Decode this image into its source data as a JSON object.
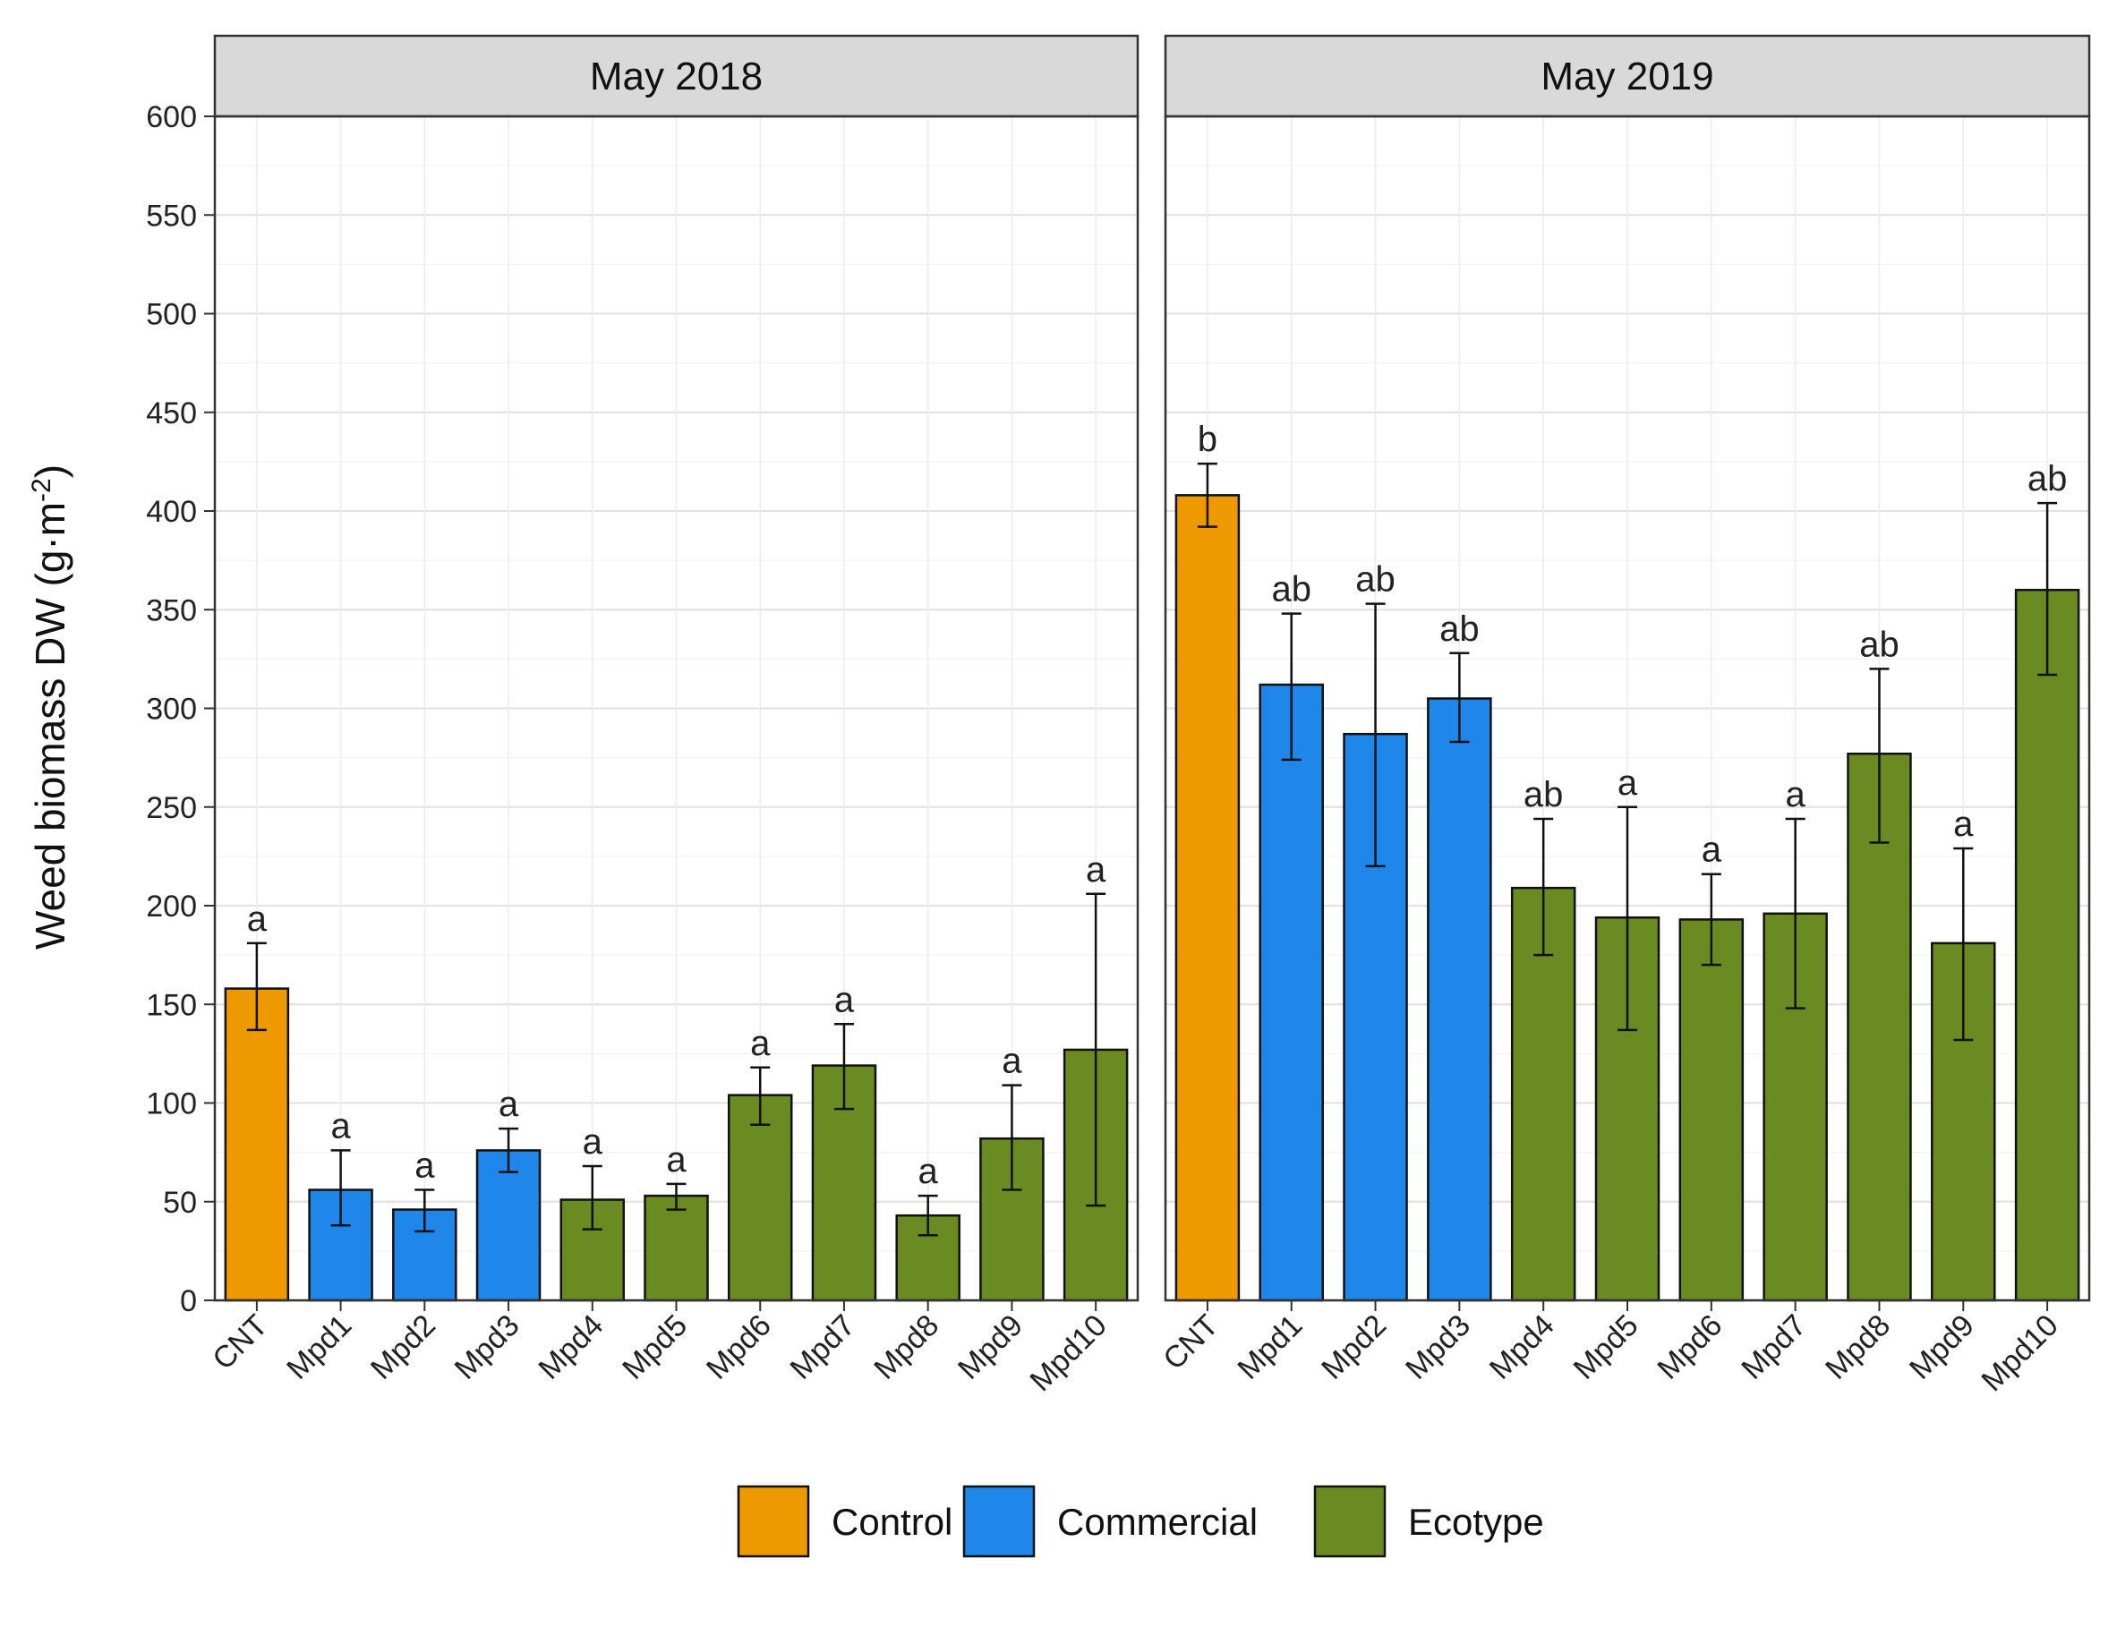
{
  "chart_data": {
    "type": "bar",
    "ylabel_main": "Weed biomass DW (g·m",
    "ylabel_sup": "-2",
    "ylabel_close": ")",
    "ylim": [
      0,
      600
    ],
    "yticks": [
      0,
      50,
      100,
      150,
      200,
      250,
      300,
      350,
      400,
      450,
      500,
      550,
      600
    ],
    "yticks_text": [
      "0",
      "50",
      "100",
      "150",
      "200",
      "250",
      "300",
      "350",
      "400",
      "450",
      "500",
      "550",
      "600"
    ],
    "categories": [
      "CNT",
      "Mpd1",
      "Mpd2",
      "Mpd3",
      "Mpd4",
      "Mpd5",
      "Mpd6",
      "Mpd7",
      "Mpd8",
      "Mpd9",
      "Mpd10"
    ],
    "groups": [
      "Control",
      "Commercial",
      "Commercial",
      "Commercial",
      "Ecotype",
      "Ecotype",
      "Ecotype",
      "Ecotype",
      "Ecotype",
      "Ecotype",
      "Ecotype"
    ],
    "colors": {
      "Control": "#EE9900",
      "Commercial": "#1F86EA",
      "Ecotype": "#6A8A22"
    },
    "grid": true,
    "legend_position": "bottom",
    "legend": [
      {
        "label": "Control",
        "color": "#EE9900"
      },
      {
        "label": "Commercial",
        "color": "#1F86EA"
      },
      {
        "label": "Ecotype",
        "color": "#6A8A22"
      }
    ],
    "panels": [
      {
        "title": "May 2018",
        "values": [
          158,
          56,
          46,
          76,
          51,
          53,
          104,
          119,
          43,
          82,
          127
        ],
        "err_low": [
          137,
          38,
          35,
          65,
          36,
          46,
          89,
          97,
          33,
          56,
          48
        ],
        "err_high": [
          181,
          76,
          56,
          87,
          68,
          59,
          118,
          140,
          53,
          109,
          206
        ],
        "letters": [
          "a",
          "a",
          "a",
          "a",
          "a",
          "a",
          "a",
          "a",
          "a",
          "a",
          "a"
        ]
      },
      {
        "title": "May 2019",
        "values": [
          408,
          312,
          287,
          305,
          209,
          194,
          193,
          196,
          277,
          181,
          360
        ],
        "err_low": [
          392,
          274,
          220,
          283,
          175,
          137,
          170,
          148,
          232,
          132,
          317
        ],
        "err_high": [
          424,
          348,
          353,
          328,
          244,
          250,
          216,
          244,
          320,
          229,
          404
        ],
        "letters": [
          "b",
          "ab",
          "ab",
          "ab",
          "ab",
          "a",
          "a",
          "a",
          "ab",
          "a",
          "ab"
        ]
      }
    ]
  }
}
